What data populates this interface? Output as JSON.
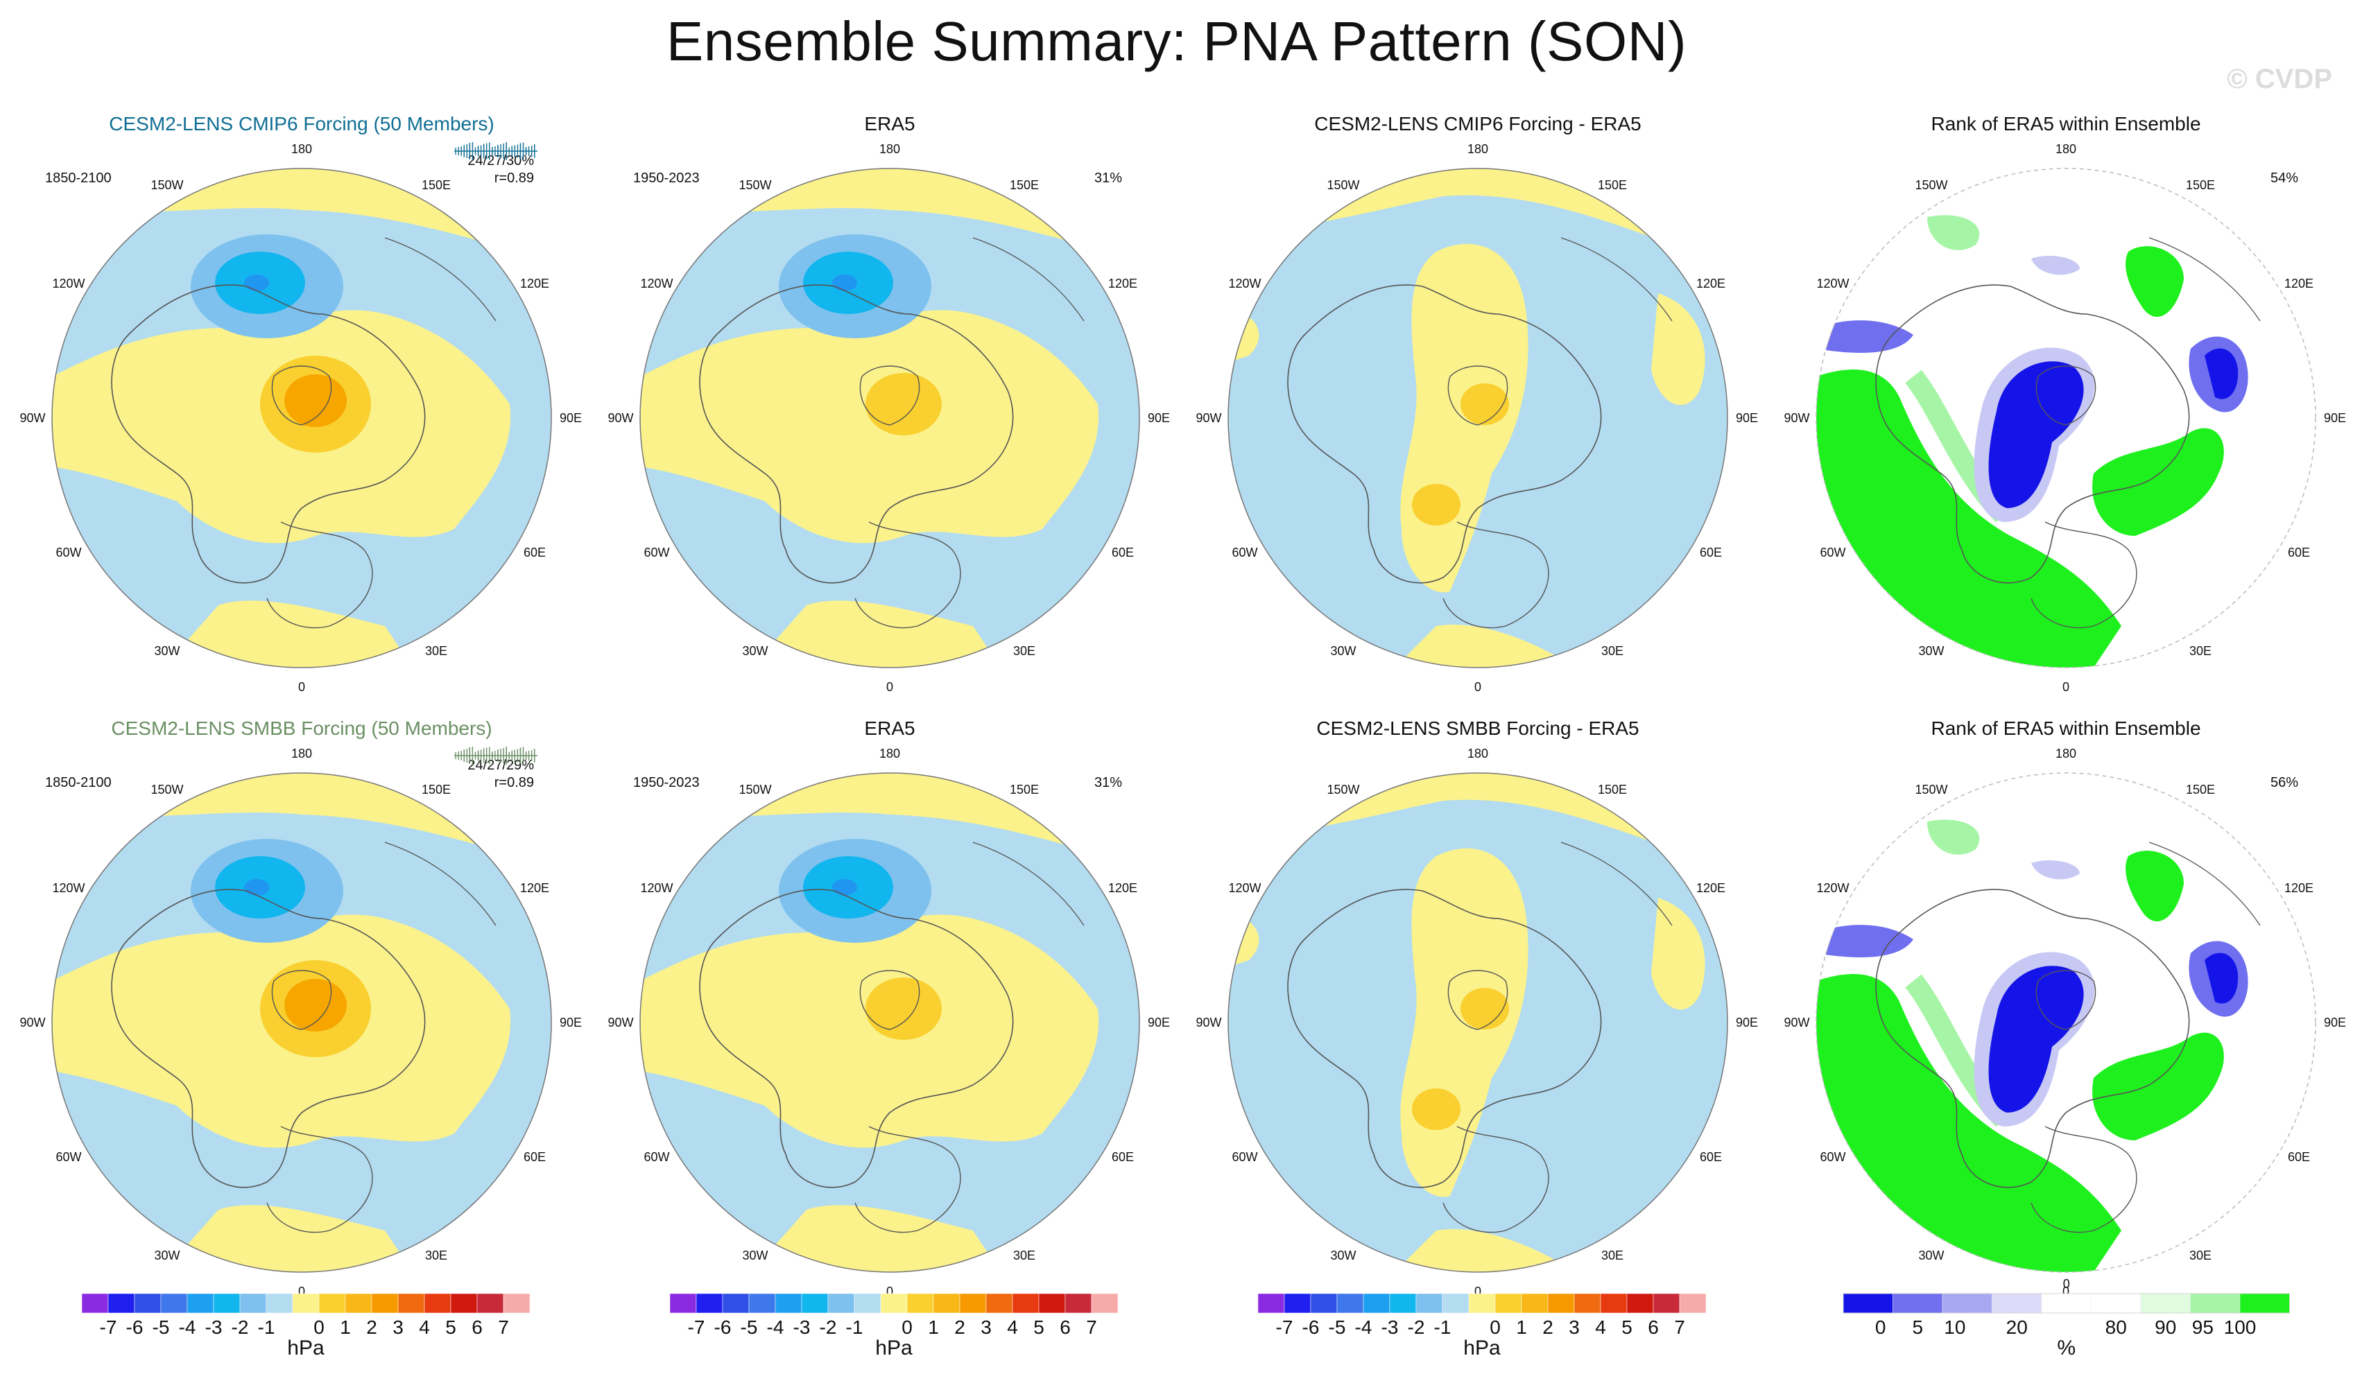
{
  "title": "Ensemble Summary: PNA Pattern (SON)",
  "watermark": "© CVDP",
  "colors": {
    "pos1": "#fbf28c",
    "pos2": "#f9d02f",
    "pos3": "#f7a600",
    "neg1": "#b3dcf0",
    "neg2": "#7ec1ee",
    "neg3": "#12b6ee",
    "neg4": "#2196f0",
    "land": "#555555",
    "rank_green": "#1ef01e",
    "rank_lgreen": "#a6f5a6",
    "rank_blue": "#1414e8",
    "rank_mblue": "#6f6ff0",
    "rank_lblue": "#c8c8f5"
  },
  "lon_labels": [
    "180",
    "150E",
    "120E",
    "90E",
    "60E",
    "30E",
    "0",
    "30W",
    "60W",
    "90W",
    "120W",
    "150W"
  ],
  "rows": [
    {
      "model": {
        "title": "CESM2-LENS CMIP6 Forcing (50 Members)",
        "title_color": "#0f6e94",
        "period": "1850-2100",
        "stat1": "24/27/30%",
        "stat2": "r=0.89",
        "tick_color": "#0f6e94"
      },
      "obs": {
        "title": "ERA5",
        "period": "1950-2023",
        "pct": "31%"
      },
      "diff": {
        "title": "CESM2-LENS CMIP6 Forcing - ERA5"
      },
      "rank": {
        "title": "Rank of ERA5 within Ensemble",
        "pct": "54%"
      }
    },
    {
      "model": {
        "title": "CESM2-LENS SMBB Forcing (50 Members)",
        "title_color": "#6a8f63",
        "period": "1850-2100",
        "stat1": "24/27/29%",
        "stat2": "r=0.89",
        "tick_color": "#6a8f63"
      },
      "obs": {
        "title": "ERA5",
        "period": "1950-2023",
        "pct": "31%"
      },
      "diff": {
        "title": "CESM2-LENS SMBB Forcing - ERA5"
      },
      "rank": {
        "title": "Rank of ERA5 within Ensemble",
        "pct": "56%"
      }
    }
  ],
  "colorbars": {
    "hpa": {
      "unit": "hPa",
      "colors": [
        "#8a2be2",
        "#1f1ff0",
        "#2f4fe6",
        "#3e78ea",
        "#1ea0f0",
        "#12b6ee",
        "#7ec1ee",
        "#b3dcf0",
        "#fbf28c",
        "#f9d02f",
        "#f9b818",
        "#f79a00",
        "#f06a10",
        "#e83a10",
        "#d01a10",
        "#c82a3a",
        "#f7aaaa"
      ],
      "ticks": [
        "-7",
        "-6",
        "-5",
        "-4",
        "-3",
        "-2",
        "-1",
        "0",
        "1",
        "2",
        "3",
        "4",
        "5",
        "6",
        "7"
      ]
    },
    "rank": {
      "unit": "%",
      "colors": [
        "#1414e8",
        "#6f6ff0",
        "#a8a8f2",
        "#dcdcf8",
        "#ffffff",
        "#ffffff",
        "#e0fbe0",
        "#a6f5a6",
        "#1ef01e"
      ],
      "ticks": [
        "0",
        "5",
        "10",
        "20",
        "80",
        "90",
        "95",
        "100"
      ],
      "mid_tick": "0"
    }
  }
}
